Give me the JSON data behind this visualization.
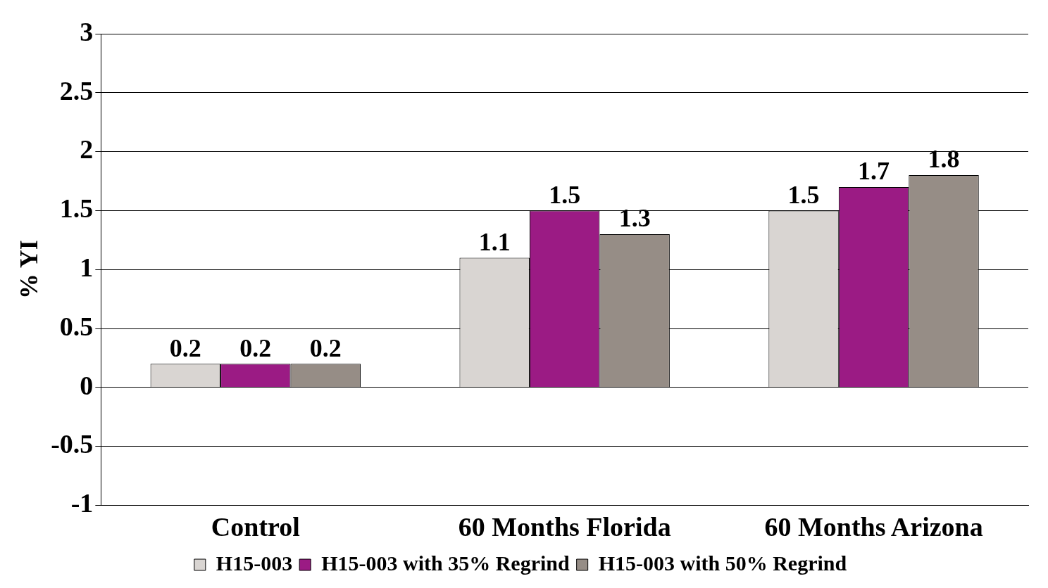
{
  "chart_data": {
    "type": "bar",
    "ylabel": "% YI",
    "categories": [
      "Control",
      "60 Months Florida",
      "60 Months Arizona"
    ],
    "series": [
      {
        "name": "H15-003",
        "color": "#d9d5d2",
        "values": [
          0.2,
          1.1,
          1.5
        ]
      },
      {
        "name": "H15-003 with 35% Regrind",
        "color": "#9b1b84",
        "values": [
          0.2,
          1.5,
          1.7
        ]
      },
      {
        "name": "H15-003 with 50% Regrind",
        "color": "#968d86",
        "values": [
          0.2,
          1.3,
          1.8
        ]
      }
    ],
    "ylim": [
      -1,
      3
    ],
    "yticks": [
      -1,
      -0.5,
      0,
      0.5,
      1,
      1.5,
      2,
      2.5,
      3
    ],
    "grid": "y",
    "legend": "bottom",
    "data_labels": true
  }
}
